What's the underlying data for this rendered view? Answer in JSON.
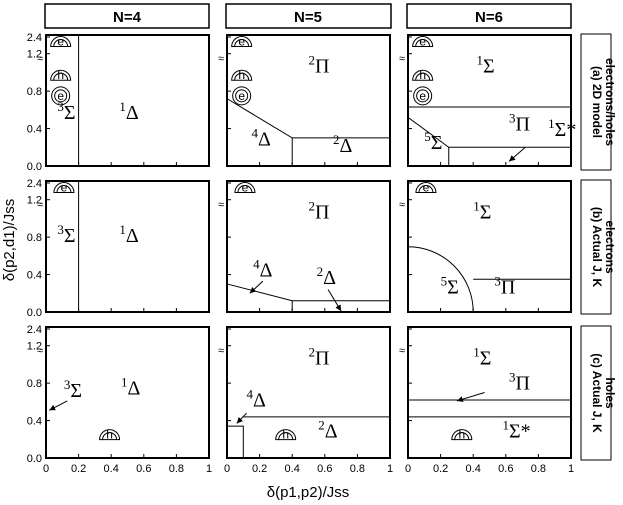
{
  "columns": [
    "N=4",
    "N=5",
    "N=6"
  ],
  "rows": [
    {
      "label": [
        "(a) 2D model",
        "electrons/holes"
      ]
    },
    {
      "label": [
        "(b) Actual J, K",
        "electrons"
      ]
    },
    {
      "label": [
        "(c) Actual J, K",
        "holes"
      ]
    }
  ],
  "axes": {
    "x_label": "δ(p1,p2)/Jss",
    "y_label": "δ(p2,d1)/Jss",
    "x_ticks": [
      "0",
      "0.2",
      "0.4",
      "0.6",
      "0.8",
      "1"
    ],
    "y_ticks": [
      "0.0",
      "0.4",
      "0.8",
      "1.2",
      "2.4"
    ],
    "break_mark": "≈"
  },
  "chart_data": {
    "type": "phase-diagram",
    "x_range": [
      0,
      1
    ],
    "y_range": [
      0,
      1.4
    ],
    "y_break": {
      "between": [
        1.4,
        2.4
      ]
    },
    "panels": [
      {
        "row": 0,
        "col": 0,
        "boundaries": [
          [
            [
              0.2,
              0
            ],
            [
              0.2,
              1.4
            ]
          ]
        ],
        "states": [
          {
            "spin": "3",
            "term": "Σ",
            "x": 0.07,
            "y": 0.5
          },
          {
            "spin": "1",
            "term": "Δ",
            "x": 0.45,
            "y": 0.5
          }
        ],
        "icons": [
          {
            "kind": "half-e",
            "letter": "e",
            "x": 0.09,
            "y": 1.33
          },
          {
            "kind": "half-h",
            "letter": "h",
            "x": 0.09,
            "y": 0.97
          },
          {
            "kind": "circle",
            "letter": "e",
            "x": 0.09,
            "y": 0.75
          }
        ],
        "arrows": []
      },
      {
        "row": 0,
        "col": 1,
        "boundaries": [
          [
            [
              0,
              0.72
            ],
            [
              0.4,
              0.3
            ],
            [
              1,
              0.3
            ]
          ],
          [
            [
              0.4,
              0.3
            ],
            [
              0.4,
              0
            ]
          ]
        ],
        "states": [
          {
            "spin": "2",
            "term": "Π",
            "x": 0.5,
            "y": 1.0
          },
          {
            "spin": "4",
            "term": "Δ",
            "x": 0.15,
            "y": 0.22
          },
          {
            "spin": "2",
            "term": "Δ",
            "x": 0.65,
            "y": 0.15
          }
        ],
        "icons": [
          {
            "kind": "half-e",
            "letter": "e",
            "x": 0.09,
            "y": 1.33
          },
          {
            "kind": "half-h",
            "letter": "h",
            "x": 0.09,
            "y": 0.97
          },
          {
            "kind": "circle",
            "letter": "e",
            "x": 0.09,
            "y": 0.75
          }
        ],
        "arrows": []
      },
      {
        "row": 0,
        "col": 2,
        "boundaries": [
          [
            [
              0,
              0.63
            ],
            [
              1,
              0.63
            ]
          ],
          [
            [
              0,
              0.52
            ],
            [
              0.25,
              0.2
            ],
            [
              1,
              0.2
            ]
          ],
          [
            [
              0.25,
              0.2
            ],
            [
              0.25,
              0
            ]
          ]
        ],
        "states": [
          {
            "spin": "1",
            "term": "Σ",
            "x": 0.42,
            "y": 1.0
          },
          {
            "spin": "3",
            "term": "Π",
            "x": 0.62,
            "y": 0.38
          },
          {
            "spin": "5",
            "term": "Σ",
            "x": 0.1,
            "y": 0.18
          },
          {
            "spin": "1",
            "term": "Σ*",
            "x": 0.86,
            "y": 0.32
          }
        ],
        "icons": [
          {
            "kind": "half-e",
            "letter": "e",
            "x": 0.09,
            "y": 1.33
          },
          {
            "kind": "half-h",
            "letter": "h",
            "x": 0.09,
            "y": 0.97
          },
          {
            "kind": "circle",
            "letter": "e",
            "x": 0.09,
            "y": 0.75
          }
        ],
        "arrows": [
          {
            "from": [
              0.72,
              0.2
            ],
            "to": [
              0.62,
              0.05
            ]
          }
        ]
      },
      {
        "row": 1,
        "col": 0,
        "boundaries": [
          [
            [
              0.2,
              0
            ],
            [
              0.2,
              1.4
            ]
          ]
        ],
        "states": [
          {
            "spin": "3",
            "term": "Σ",
            "x": 0.07,
            "y": 0.75
          },
          {
            "spin": "1",
            "term": "Δ",
            "x": 0.45,
            "y": 0.75
          }
        ],
        "icons": [
          {
            "kind": "half-e",
            "letter": "e",
            "x": 0.11,
            "y": 1.33
          }
        ],
        "arrows": []
      },
      {
        "row": 1,
        "col": 1,
        "boundaries": [
          [
            [
              0,
              0.3
            ],
            [
              0.4,
              0.12
            ],
            [
              1,
              0.12
            ]
          ],
          [
            [
              0.4,
              0.12
            ],
            [
              0.4,
              0
            ]
          ]
        ],
        "states": [
          {
            "spin": "2",
            "term": "Π",
            "x": 0.5,
            "y": 1.0
          },
          {
            "spin": "4",
            "term": "Δ",
            "x": 0.16,
            "y": 0.38
          },
          {
            "spin": "2",
            "term": "Δ",
            "x": 0.55,
            "y": 0.3
          }
        ],
        "icons": [
          {
            "kind": "half-e",
            "letter": "e",
            "x": 0.11,
            "y": 1.33
          }
        ],
        "arrows": [
          {
            "from": [
              0.22,
              0.33
            ],
            "to": [
              0.14,
              0.2
            ]
          },
          {
            "from": [
              0.62,
              0.24
            ],
            "to": [
              0.7,
              0.01
            ]
          }
        ]
      },
      {
        "row": 1,
        "col": 2,
        "boundaries": [
          [
            [
              0.4,
              0.35
            ],
            [
              1,
              0.35
            ]
          ],
          {
            "arc": true,
            "center": [
              0,
              0
            ],
            "radius_x": 0.4
          }
        ],
        "states": [
          {
            "spin": "1",
            "term": "Σ",
            "x": 0.4,
            "y": 1.0
          },
          {
            "spin": "5",
            "term": "Σ",
            "x": 0.2,
            "y": 0.2
          },
          {
            "spin": "3",
            "term": "Π",
            "x": 0.53,
            "y": 0.2
          }
        ],
        "icons": [
          {
            "kind": "half-e",
            "letter": "e",
            "x": 0.11,
            "y": 1.33
          }
        ],
        "arrows": []
      },
      {
        "row": 2,
        "col": 0,
        "boundaries": [],
        "states": [
          {
            "spin": "3",
            "term": "Σ",
            "x": 0.11,
            "y": 0.65
          },
          {
            "spin": "1",
            "term": "Δ",
            "x": 0.46,
            "y": 0.68
          }
        ],
        "icons": [
          {
            "kind": "half-h",
            "letter": "h",
            "x": 0.39,
            "y": 0.25
          }
        ],
        "arrows": [
          {
            "from": [
              0.13,
              0.61
            ],
            "to": [
              0.02,
              0.51
            ]
          }
        ]
      },
      {
        "row": 2,
        "col": 1,
        "boundaries": [
          [
            [
              0,
              0.34
            ],
            [
              0.1,
              0.34
            ],
            [
              0.1,
              0
            ]
          ],
          [
            [
              0.1,
              0.44
            ],
            [
              1,
              0.44
            ]
          ]
        ],
        "states": [
          {
            "spin": "2",
            "term": "Π",
            "x": 0.5,
            "y": 1.0
          },
          {
            "spin": "4",
            "term": "Δ",
            "x": 0.12,
            "y": 0.55
          },
          {
            "spin": "2",
            "term": "Δ",
            "x": 0.56,
            "y": 0.22
          }
        ],
        "icons": [
          {
            "kind": "half-h",
            "letter": "h",
            "x": 0.36,
            "y": 0.25
          }
        ],
        "arrows": [
          {
            "from": [
              0.12,
              0.48
            ],
            "to": [
              0.06,
              0.37
            ]
          }
        ]
      },
      {
        "row": 2,
        "col": 2,
        "boundaries": [
          [
            [
              0,
              0.62
            ],
            [
              1,
              0.62
            ]
          ],
          [
            [
              0,
              0.44
            ],
            [
              1,
              0.44
            ]
          ]
        ],
        "states": [
          {
            "spin": "1",
            "term": "Σ",
            "x": 0.4,
            "y": 1.0
          },
          {
            "spin": "3",
            "term": "Π",
            "x": 0.62,
            "y": 0.73
          },
          {
            "spin": "1",
            "term": "Σ*",
            "x": 0.58,
            "y": 0.22
          }
        ],
        "icons": [
          {
            "kind": "half-h",
            "letter": "h",
            "x": 0.33,
            "y": 0.25
          }
        ],
        "arrows": [
          {
            "from": [
              0.47,
              0.7
            ],
            "to": [
              0.3,
              0.61
            ]
          }
        ]
      }
    ]
  }
}
